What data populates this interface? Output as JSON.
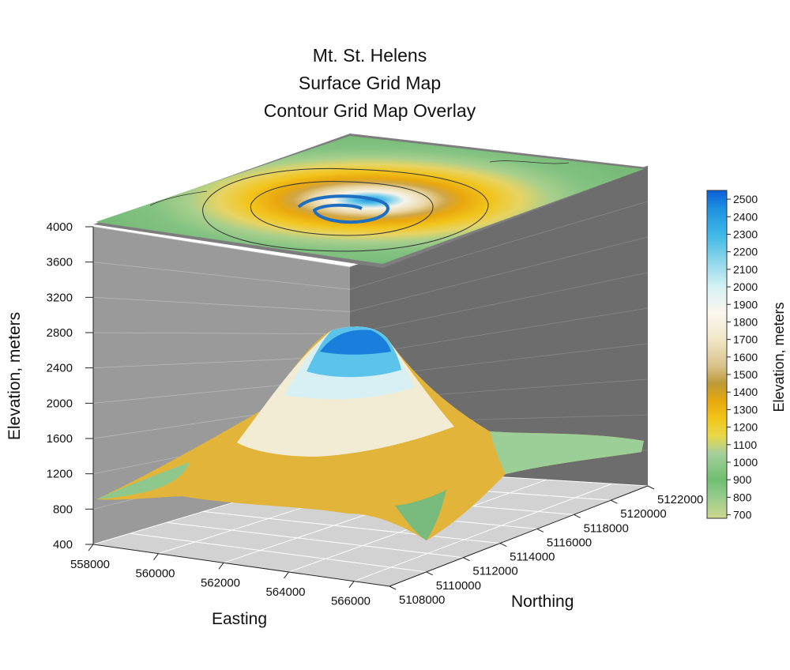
{
  "chart_data": {
    "type": "surface",
    "title": [
      "Mt. St. Helens",
      "Surface Grid Map",
      "Contour Grid Map Overlay"
    ],
    "xlabel": "Easting",
    "ylabel": "Northing",
    "zlabel": "Elevation, meters",
    "x_ticks": [
      558000,
      560000,
      562000,
      564000,
      566000
    ],
    "y_ticks": [
      5108000,
      5110000,
      5112000,
      5114000,
      5116000,
      5118000,
      5120000,
      5122000
    ],
    "z_ticks": [
      400,
      800,
      1200,
      1600,
      2000,
      2400,
      2800,
      3200,
      3600,
      4000
    ],
    "xlim": [
      558000,
      566000
    ],
    "ylim": [
      5108000,
      5122000
    ],
    "zlim": [
      400,
      4000
    ],
    "peak_elevation_approx": 2550,
    "colorbar": {
      "label": "Elevation, meters",
      "ticks": [
        700,
        800,
        900,
        1000,
        1100,
        1200,
        1300,
        1400,
        1500,
        1600,
        1700,
        1800,
        1900,
        2000,
        2100,
        2200,
        2300,
        2400,
        2500
      ],
      "range": [
        680,
        2550
      ],
      "stops": [
        {
          "value": 680,
          "color": "#cfd98e"
        },
        {
          "value": 820,
          "color": "#8ec98a"
        },
        {
          "value": 900,
          "color": "#6fbf6f"
        },
        {
          "value": 1050,
          "color": "#a7cf9c"
        },
        {
          "value": 1150,
          "color": "#e8d84a"
        },
        {
          "value": 1250,
          "color": "#f2c51a"
        },
        {
          "value": 1350,
          "color": "#e6a80e"
        },
        {
          "value": 1450,
          "color": "#bd9a3a"
        },
        {
          "value": 1550,
          "color": "#d9c38b"
        },
        {
          "value": 1700,
          "color": "#f1e6c7"
        },
        {
          "value": 1850,
          "color": "#fbf8ee"
        },
        {
          "value": 2000,
          "color": "#d6f1f4"
        },
        {
          "value": 2150,
          "color": "#8bd6ea"
        },
        {
          "value": 2300,
          "color": "#3fb8e6"
        },
        {
          "value": 2450,
          "color": "#1c8fe0"
        },
        {
          "value": 2550,
          "color": "#0b5fd8"
        }
      ]
    },
    "grid": true,
    "legend": "right"
  }
}
